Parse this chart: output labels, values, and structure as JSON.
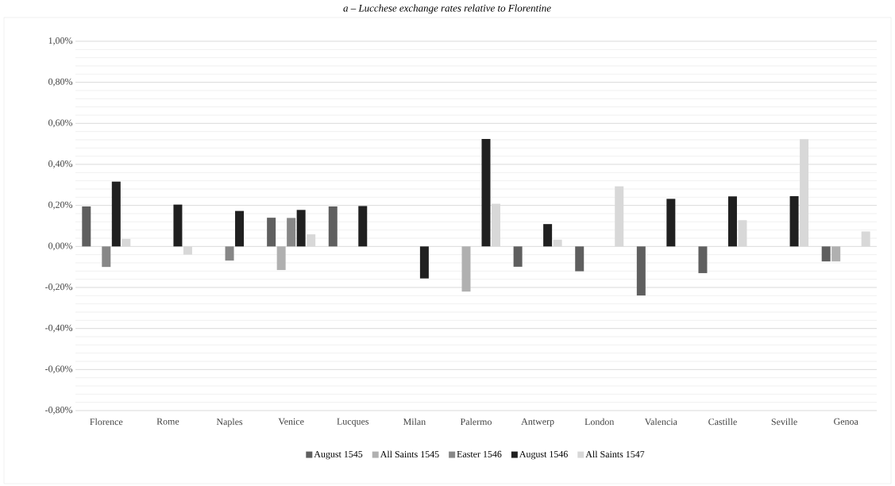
{
  "chart_data": {
    "type": "bar",
    "title": "a – Lucchese exchange rates relative to Florentine",
    "categories": [
      "Florence",
      "Rome",
      "Naples",
      "Venice",
      "Lucques",
      "Milan",
      "Palermo",
      "Antwerp",
      "London",
      "Valencia",
      "Castille",
      "Seville",
      "Genoa"
    ],
    "series": [
      {
        "name": "August 1545",
        "color": "#5f5f5f",
        "values": [
          0.195,
          null,
          null,
          0.14,
          0.195,
          null,
          null,
          -0.099,
          -0.121,
          -0.239,
          -0.13,
          null,
          -0.073
        ]
      },
      {
        "name": "All Saints 1545",
        "color": "#b0b0b0",
        "values": [
          null,
          null,
          null,
          -0.115,
          null,
          null,
          -0.22,
          null,
          null,
          null,
          null,
          null,
          -0.073
        ]
      },
      {
        "name": "Easter 1546",
        "color": "#878787",
        "values": [
          -0.1,
          null,
          -0.069,
          0.139,
          null,
          null,
          null,
          null,
          null,
          null,
          null,
          null,
          null
        ]
      },
      {
        "name": "August 1546",
        "color": "#202020",
        "values": [
          0.316,
          0.204,
          0.173,
          0.178,
          0.197,
          -0.156,
          0.524,
          0.109,
          null,
          0.232,
          0.244,
          0.245,
          null
        ]
      },
      {
        "name": "All Saints 1547",
        "color": "#d8d8d8",
        "values": [
          0.037,
          -0.04,
          null,
          0.059,
          null,
          null,
          0.208,
          0.033,
          0.293,
          null,
          0.128,
          0.523,
          0.073
        ]
      }
    ],
    "ylim": [
      -0.8,
      1.0
    ],
    "yticks": [
      {
        "value": -0.8,
        "label": "-0,80%"
      },
      {
        "value": -0.6,
        "label": "-0,60%"
      },
      {
        "value": -0.4,
        "label": "-0,40%"
      },
      {
        "value": -0.2,
        "label": "-0,20%"
      },
      {
        "value": 0,
        "label": "0,00%"
      },
      {
        "value": 0.2,
        "label": "0,20%"
      },
      {
        "value": 0.4,
        "label": "0,40%"
      },
      {
        "value": 0.6,
        "label": "0,60%"
      },
      {
        "value": 0.8,
        "label": "0,80%"
      },
      {
        "value": 1.0,
        "label": "1,00%"
      }
    ],
    "grid": "y",
    "legend": "bottom"
  }
}
